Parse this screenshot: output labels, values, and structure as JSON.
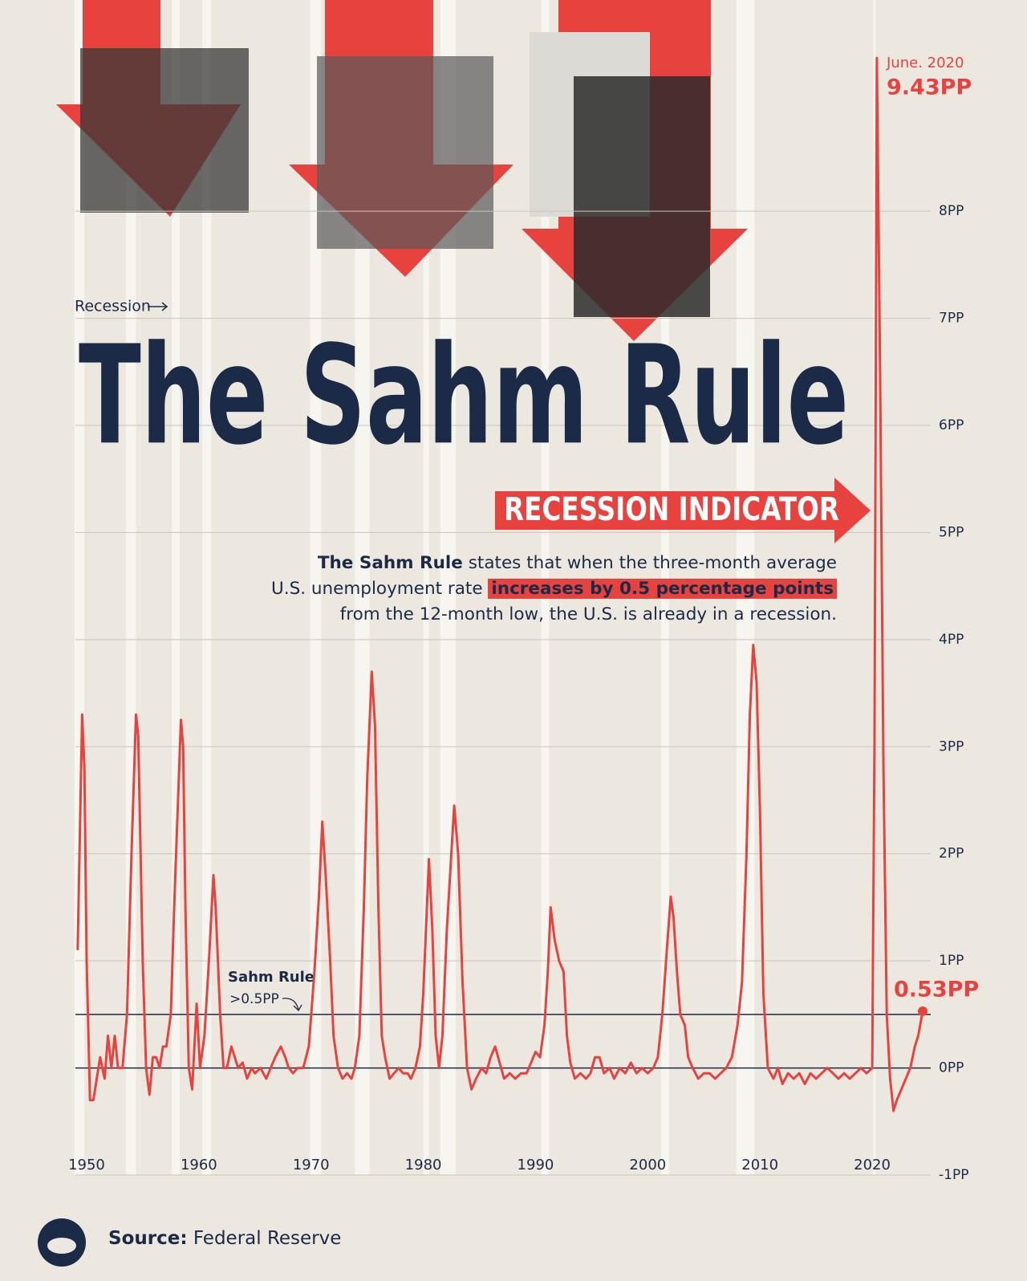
{
  "chart_data": {
    "type": "line",
    "title": "The Sahm Rule",
    "subtitle": "RECESSION INDICATOR",
    "description": [
      "The Sahm Rule",
      "states that when the three-month average",
      "U.S. unemployment rate",
      "increases by 0.5 percentage points",
      "from the 12-month low, the U.S. is already in a recession."
    ],
    "legend_label": "Recession",
    "recession_color": "#f7f5f0",
    "recessions": [
      [
        1948.9,
        1949.8
      ],
      [
        1953.5,
        1954.4
      ],
      [
        1957.6,
        1958.3
      ],
      [
        1960.3,
        1961.1
      ],
      [
        1969.9,
        1970.9
      ],
      [
        1973.9,
        1975.2
      ],
      [
        1980.0,
        1980.5
      ],
      [
        1981.5,
        1982.9
      ],
      [
        1990.5,
        1991.2
      ],
      [
        2001.2,
        2001.9
      ],
      [
        2007.9,
        2009.5
      ],
      [
        2020.1,
        2020.3
      ]
    ],
    "threshold": {
      "value": 0.5,
      "label": "Sahm Rule",
      "sublabel": ">0.5PP",
      "color": "#1b2a47"
    },
    "annotations": [
      {
        "x": 2020.42,
        "y": 9.43,
        "date": "June. 2020",
        "label": "9.43PP"
      },
      {
        "x": 2024.5,
        "y": 0.53,
        "label": "0.53PP"
      }
    ],
    "xlim": [
      1949,
      2025
    ],
    "ylim": [
      -1,
      9.5
    ],
    "xticks": [
      1950,
      1960,
      1970,
      1980,
      1990,
      2000,
      2010,
      2020
    ],
    "yticks": [
      {
        "value": -1,
        "label": "-1PP"
      },
      {
        "value": 0,
        "label": "0PP"
      },
      {
        "value": 1,
        "label": "1PP"
      },
      {
        "value": 2,
        "label": "2PP"
      },
      {
        "value": 3,
        "label": "3PP"
      },
      {
        "value": 4,
        "label": "4PP"
      },
      {
        "value": 5,
        "label": "5PP"
      },
      {
        "value": 6,
        "label": "6PP"
      },
      {
        "value": 7,
        "label": "7PP"
      },
      {
        "value": 8,
        "label": "8PP"
      }
    ],
    "grid": true,
    "series": [
      {
        "name": "Sahm Rule indicator",
        "color": "#e8423f",
        "x": [
          1949.2,
          1949.6,
          1949.8,
          1950.0,
          1950.3,
          1950.6,
          1950.9,
          1951.2,
          1951.6,
          1951.9,
          1952.2,
          1952.5,
          1952.8,
          1953.2,
          1953.6,
          1954.0,
          1954.4,
          1954.6,
          1955.0,
          1955.3,
          1955.6,
          1955.9,
          1956.2,
          1956.5,
          1956.8,
          1957.1,
          1957.5,
          1957.8,
          1958.4,
          1958.6,
          1958.8,
          1959.1,
          1959.4,
          1959.6,
          1959.8,
          1960.1,
          1960.5,
          1960.9,
          1961.3,
          1961.5,
          1961.9,
          1962.2,
          1962.5,
          1962.9,
          1963.2,
          1963.5,
          1963.9,
          1964.3,
          1964.7,
          1965.0,
          1965.5,
          1966.0,
          1966.4,
          1966.8,
          1967.3,
          1967.7,
          1968.0,
          1968.4,
          1968.8,
          1969.3,
          1969.8,
          1970.3,
          1970.7,
          1971.0,
          1971.3,
          1971.7,
          1972.0,
          1972.4,
          1972.8,
          1973.2,
          1973.6,
          1973.9,
          1974.3,
          1974.7,
          1975.0,
          1975.4,
          1975.7,
          1976.0,
          1976.3,
          1976.6,
          1977.0,
          1977.4,
          1977.8,
          1978.2,
          1978.6,
          1978.9,
          1979.3,
          1979.7,
          1980.0,
          1980.5,
          1980.8,
          1981.1,
          1981.4,
          1981.7,
          1982.1,
          1982.75,
          1983.1,
          1983.5,
          1983.9,
          1984.3,
          1984.7,
          1985.2,
          1985.6,
          1986.0,
          1986.4,
          1986.8,
          1987.2,
          1987.7,
          1988.2,
          1988.7,
          1989.2,
          1989.6,
          1990.0,
          1990.4,
          1990.8,
          1991.1,
          1991.35,
          1991.7,
          1992.1,
          1992.5,
          1992.8,
          1993.1,
          1993.5,
          1994.0,
          1994.5,
          1994.9,
          1995.3,
          1995.7,
          1996.1,
          1996.6,
          1997.0,
          1997.5,
          1998.0,
          1998.5,
          1999.0,
          1999.5,
          2000.0,
          2000.5,
          2000.9,
          2001.3,
          2001.7,
          2002.05,
          2002.3,
          2002.6,
          2002.9,
          2003.3,
          2003.6,
          2004.0,
          2004.5,
          2005.0,
          2005.5,
          2006.0,
          2006.5,
          2007.0,
          2007.5,
          2008.0,
          2008.4,
          2008.8,
          2009.1,
          2009.4,
          2009.7,
          2010.0,
          2010.3,
          2010.7,
          2011.2,
          2011.6,
          2012.0,
          2012.5,
          2013.0,
          2013.5,
          2014.0,
          2014.5,
          2015.0,
          2015.5,
          2016.0,
          2016.5,
          2017.0,
          2017.5,
          2018.0,
          2018.5,
          2019.0,
          2019.5,
          2020.0,
          2020.2,
          2020.42,
          2020.7,
          2021.0,
          2021.3,
          2021.6,
          2021.9,
          2022.2,
          2022.6,
          2023.0,
          2023.4,
          2023.8,
          2024.1,
          2024.5
        ],
        "values": [
          1.1,
          3.3,
          2.8,
          1.0,
          -0.3,
          -0.3,
          -0.1,
          0.1,
          -0.1,
          0.3,
          0.0,
          0.3,
          0.0,
          0.0,
          0.5,
          2.0,
          3.3,
          3.1,
          1.0,
          0.0,
          -0.25,
          0.1,
          0.1,
          0.0,
          0.2,
          0.2,
          0.5,
          1.5,
          3.25,
          3.0,
          1.5,
          0.0,
          -0.2,
          0.2,
          0.6,
          0.0,
          0.3,
          1.0,
          1.8,
          1.5,
          0.5,
          0.0,
          0.0,
          0.2,
          0.1,
          0.0,
          0.05,
          -0.1,
          0.0,
          -0.05,
          0.0,
          -0.1,
          0.0,
          0.1,
          0.2,
          0.1,
          0.0,
          -0.05,
          0.0,
          0.0,
          0.2,
          0.9,
          1.6,
          2.3,
          1.8,
          1.0,
          0.3,
          0.0,
          -0.1,
          -0.05,
          -0.1,
          0.0,
          0.3,
          1.5,
          2.7,
          3.7,
          3.2,
          1.5,
          0.3,
          0.1,
          -0.1,
          -0.05,
          0.0,
          -0.05,
          -0.05,
          -0.1,
          0.0,
          0.2,
          0.7,
          1.95,
          1.3,
          0.3,
          0.0,
          0.3,
          1.3,
          2.45,
          2.0,
          0.8,
          0.0,
          -0.2,
          -0.1,
          0.0,
          -0.05,
          0.1,
          0.2,
          0.05,
          -0.1,
          -0.05,
          -0.1,
          -0.05,
          -0.05,
          0.05,
          0.15,
          0.1,
          0.4,
          0.9,
          1.5,
          1.2,
          1.0,
          0.9,
          0.3,
          0.05,
          -0.1,
          -0.05,
          -0.1,
          -0.05,
          0.1,
          0.1,
          -0.05,
          0.0,
          -0.1,
          0.0,
          -0.05,
          0.05,
          -0.05,
          0.0,
          -0.05,
          0.0,
          0.1,
          0.5,
          1.1,
          1.6,
          1.4,
          0.9,
          0.5,
          0.4,
          0.1,
          0.0,
          -0.1,
          -0.05,
          -0.05,
          -0.1,
          -0.05,
          0.0,
          0.1,
          0.4,
          0.8,
          2.0,
          3.3,
          3.95,
          3.6,
          2.4,
          0.7,
          0.0,
          -0.1,
          0.0,
          -0.15,
          -0.05,
          -0.1,
          -0.05,
          -0.15,
          -0.05,
          -0.1,
          -0.05,
          0.0,
          -0.05,
          -0.1,
          -0.05,
          -0.1,
          -0.05,
          0.0,
          -0.05,
          0.0,
          3.0,
          9.43,
          6.5,
          2.8,
          0.5,
          -0.1,
          -0.4,
          -0.3,
          -0.2,
          -0.1,
          0.0,
          0.2,
          0.3,
          0.53
        ]
      }
    ]
  },
  "footer": {
    "source_label": "Source:",
    "source": "Federal Reserve"
  }
}
